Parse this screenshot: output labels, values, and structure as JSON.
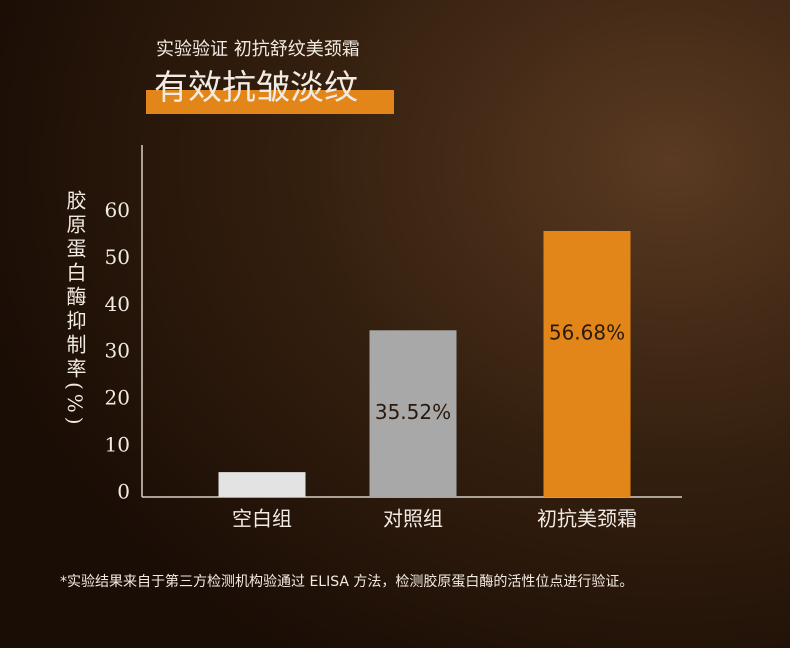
{
  "chart_data": {
    "type": "bar",
    "subtitle": "实验验证 初抗舒纹美颈霜",
    "title": "有效抗皱淡纹",
    "y_label": "胶原蛋白酶抑制率(%)",
    "categories": [
      "空白组",
      "对照组",
      "初抗美颈霜"
    ],
    "values": [
      5.3,
      35.52,
      56.68
    ],
    "value_labels": [
      null,
      "35.52%",
      "56.68%"
    ],
    "colors": [
      "#e3e3e3",
      "#a8a8a8",
      "#e2861a"
    ],
    "ylim": [
      0,
      75
    ],
    "yticks": [
      0,
      10,
      20,
      30,
      40,
      50,
      60
    ],
    "footnote": "*实验结果来自于第三方检测机构验通过 ELISA 方法，检测胶原蛋白酶的活性位点进行验证。"
  }
}
